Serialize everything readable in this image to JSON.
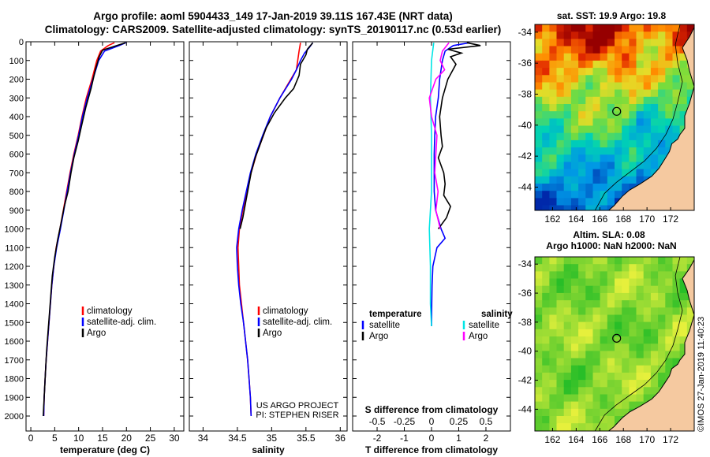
{
  "header": {
    "line1": "Argo profile: aoml 5904433_149 17-Jan-2019 39.11S 167.43E (NRT data)",
    "line2": "Climatology: CARS2009. Satellite-adjusted climatology: synTS_20190117.nc (0.53d earlier)"
  },
  "colors": {
    "climatology": "#ff0000",
    "satellite": "#0000ff",
    "argo": "#000000",
    "sat_salinity": "#00e5e5",
    "argo_salinity": "#ff00ff"
  },
  "credits": {
    "line1": "US ARGO PROJECT",
    "line2": "PI: STEPHEN RISER"
  },
  "watermark": "©IMOS 27-Jan-2019 11:40:23",
  "chart_data": [
    {
      "id": "temperature",
      "type": "line",
      "xlabel": "temperature (deg C)",
      "ylabel": "",
      "xlim": [
        -1,
        32
      ],
      "ylim": [
        0,
        2080
      ],
      "xticks": [
        0,
        5,
        10,
        15,
        20,
        25,
        30
      ],
      "yticks": [
        0,
        100,
        200,
        300,
        400,
        500,
        600,
        700,
        800,
        900,
        1000,
        1100,
        1200,
        1300,
        1400,
        1500,
        1600,
        1700,
        1800,
        1900,
        2000
      ],
      "legend": [
        "climatology",
        "satellite-adj. clim.",
        "Argo"
      ],
      "series": [
        {
          "name": "climatology",
          "color": "#ff0000",
          "points": [
            [
              17.5,
              5
            ],
            [
              16.2,
              20
            ],
            [
              14.6,
              50
            ],
            [
              13.8,
              100
            ],
            [
              12.8,
              200
            ],
            [
              11.6,
              300
            ],
            [
              10.7,
              400
            ],
            [
              9.9,
              500
            ],
            [
              9.0,
              600
            ],
            [
              8.2,
              700
            ],
            [
              7.5,
              800
            ],
            [
              6.8,
              900
            ],
            [
              6.1,
              1000
            ],
            [
              5.3,
              1100
            ],
            [
              4.8,
              1200
            ],
            [
              4.4,
              1300
            ],
            [
              4.1,
              1400
            ],
            [
              3.8,
              1500
            ],
            [
              3.5,
              1600
            ],
            [
              3.2,
              1700
            ],
            [
              3.0,
              1800
            ],
            [
              2.8,
              1900
            ],
            [
              2.7,
              2000
            ]
          ]
        },
        {
          "name": "satellite-adj. clim.",
          "color": "#0000ff",
          "points": [
            [
              19.9,
              5
            ],
            [
              18.5,
              20
            ],
            [
              15.4,
              50
            ],
            [
              14.2,
              100
            ],
            [
              13.0,
              200
            ],
            [
              11.8,
              300
            ],
            [
              10.8,
              400
            ],
            [
              10.0,
              500
            ],
            [
              9.1,
              600
            ],
            [
              8.3,
              700
            ],
            [
              7.6,
              800
            ],
            [
              6.9,
              900
            ],
            [
              6.2,
              1000
            ],
            [
              5.4,
              1100
            ],
            [
              4.8,
              1200
            ],
            [
              4.4,
              1300
            ],
            [
              4.1,
              1400
            ],
            [
              3.8,
              1500
            ],
            [
              3.5,
              1600
            ],
            [
              3.2,
              1700
            ],
            [
              3.0,
              1800
            ],
            [
              2.8,
              1900
            ],
            [
              2.7,
              2000
            ]
          ]
        },
        {
          "name": "Argo",
          "color": "#000000",
          "points": [
            [
              19.8,
              5
            ],
            [
              18.0,
              20
            ],
            [
              15.0,
              45
            ],
            [
              14.3,
              80
            ],
            [
              13.5,
              150
            ],
            [
              12.6,
              250
            ],
            [
              11.5,
              350
            ],
            [
              10.6,
              450
            ],
            [
              9.9,
              530
            ],
            [
              9.0,
              620
            ],
            [
              8.4,
              700
            ],
            [
              7.8,
              800
            ],
            [
              7.0,
              880
            ],
            [
              6.4,
              960
            ],
            [
              5.6,
              1060
            ],
            [
              5.0,
              1150
            ],
            [
              4.5,
              1250
            ],
            [
              4.2,
              1350
            ],
            [
              3.9,
              1450
            ],
            [
              3.6,
              1550
            ],
            [
              3.3,
              1650
            ],
            [
              3.1,
              1750
            ],
            [
              2.9,
              1850
            ],
            [
              2.7,
              1950
            ],
            [
              2.6,
              2000
            ]
          ]
        }
      ]
    },
    {
      "id": "salinity",
      "type": "line",
      "xlabel": "salinity",
      "ylabel": "",
      "xlim": [
        33.8,
        36.1
      ],
      "ylim": [
        0,
        2080
      ],
      "xticks": [
        34,
        34.5,
        35,
        35.5,
        36
      ],
      "legend": [
        "climatology",
        "satellite-adj. clim.",
        "Argo"
      ],
      "series": [
        {
          "name": "climatology",
          "color": "#ff0000",
          "points": [
            [
              35.42,
              5
            ],
            [
              35.4,
              50
            ],
            [
              35.38,
              100
            ],
            [
              35.36,
              150
            ],
            [
              35.28,
              200
            ],
            [
              35.12,
              300
            ],
            [
              34.98,
              400
            ],
            [
              34.88,
              500
            ],
            [
              34.78,
              600
            ],
            [
              34.7,
              700
            ],
            [
              34.64,
              800
            ],
            [
              34.58,
              900
            ],
            [
              34.53,
              1000
            ],
            [
              34.51,
              1100
            ],
            [
              34.52,
              1200
            ],
            [
              34.53,
              1300
            ],
            [
              34.56,
              1400
            ],
            [
              34.59,
              1500
            ],
            [
              34.62,
              1600
            ],
            [
              34.65,
              1700
            ],
            [
              34.67,
              1800
            ],
            [
              34.69,
              1900
            ],
            [
              34.7,
              2000
            ]
          ]
        },
        {
          "name": "satellite-adj. clim.",
          "color": "#0000ff",
          "points": [
            [
              35.6,
              5
            ],
            [
              35.55,
              30
            ],
            [
              35.48,
              60
            ],
            [
              35.42,
              100
            ],
            [
              35.36,
              150
            ],
            [
              35.29,
              200
            ],
            [
              35.12,
              300
            ],
            [
              34.98,
              400
            ],
            [
              34.87,
              500
            ],
            [
              34.77,
              600
            ],
            [
              34.69,
              700
            ],
            [
              34.63,
              800
            ],
            [
              34.57,
              900
            ],
            [
              34.52,
              1000
            ],
            [
              34.49,
              1100
            ],
            [
              34.5,
              1200
            ],
            [
              34.52,
              1300
            ],
            [
              34.55,
              1400
            ],
            [
              34.59,
              1500
            ],
            [
              34.62,
              1600
            ],
            [
              34.65,
              1700
            ],
            [
              34.67,
              1800
            ],
            [
              34.69,
              1900
            ],
            [
              34.7,
              2000
            ]
          ]
        },
        {
          "name": "Argo",
          "color": "#000000",
          "points": [
            [
              35.6,
              5
            ],
            [
              35.52,
              40
            ],
            [
              35.5,
              70
            ],
            [
              35.42,
              120
            ],
            [
              35.4,
              180
            ],
            [
              35.32,
              250
            ],
            [
              35.2,
              300
            ],
            [
              35.04,
              380
            ],
            [
              34.92,
              460
            ],
            [
              34.84,
              540
            ],
            [
              34.76,
              620
            ],
            [
              34.7,
              700
            ],
            [
              34.66,
              780
            ],
            [
              34.62,
              860
            ],
            [
              34.58,
              940
            ],
            [
              34.54,
              1000
            ]
          ]
        }
      ]
    },
    {
      "id": "difference",
      "type": "line",
      "xlabel": "T difference from climatology",
      "title_top": "S difference from climatology",
      "xlim": [
        -2.9,
        2.9
      ],
      "ylim": [
        0,
        2080
      ],
      "xticks": [
        -2,
        -1,
        0,
        1,
        2
      ],
      "xtick_labels": [
        "-2",
        "-1",
        "0",
        "1",
        "2"
      ],
      "sticks": [
        -0.5,
        -0.25,
        0,
        0.25,
        0.5
      ],
      "stick_labels": [
        "-0.5",
        "-0.25",
        "0",
        "0.25",
        "0.5"
      ],
      "legend_left_title": "temperature",
      "legend_right_title": "salinity",
      "legend_left": [
        "satellite",
        "Argo"
      ],
      "legend_right": [
        "satellite",
        "Argo"
      ],
      "series": [
        {
          "name": "T satellite",
          "color": "#0000ff",
          "axis": "T",
          "points": [
            [
              1.4,
              5
            ],
            [
              0.8,
              20
            ],
            [
              0.5,
              50
            ],
            [
              0.4,
              100
            ],
            [
              0.3,
              200
            ],
            [
              0.25,
              300
            ],
            [
              0.15,
              400
            ],
            [
              0.12,
              500
            ],
            [
              0.1,
              600
            ],
            [
              0.1,
              700
            ],
            [
              0.1,
              800
            ],
            [
              0.15,
              900
            ],
            [
              0.35,
              1000
            ],
            [
              0.5,
              1050
            ],
            [
              0.2,
              1100
            ],
            [
              0.05,
              1200
            ],
            [
              0.02,
              1300
            ],
            [
              0.01,
              1400
            ],
            [
              0.0,
              1520
            ]
          ]
        },
        {
          "name": "T Argo",
          "color": "#000000",
          "axis": "T",
          "points": [
            [
              1.3,
              5
            ],
            [
              1.8,
              20
            ],
            [
              0.6,
              40
            ],
            [
              1.1,
              60
            ],
            [
              0.7,
              80
            ],
            [
              0.9,
              120
            ],
            [
              0.6,
              200
            ],
            [
              0.4,
              300
            ],
            [
              0.3,
              400
            ],
            [
              0.35,
              500
            ],
            [
              0.4,
              560
            ],
            [
              0.25,
              620
            ],
            [
              0.45,
              700
            ],
            [
              0.5,
              760
            ],
            [
              0.45,
              820
            ],
            [
              0.7,
              880
            ],
            [
              0.55,
              940
            ],
            [
              0.25,
              1000
            ]
          ]
        },
        {
          "name": "S satellite",
          "color": "#00e5e5",
          "axis": "S",
          "points": [
            [
              0.02,
              5
            ],
            [
              0.0,
              100
            ],
            [
              -0.01,
              300
            ],
            [
              0.0,
              500
            ],
            [
              0.0,
              800
            ],
            [
              -0.02,
              1000
            ],
            [
              -0.01,
              1200
            ],
            [
              -0.01,
              1400
            ],
            [
              0.0,
              1520
            ]
          ]
        },
        {
          "name": "S Argo",
          "color": "#ff00ff",
          "axis": "S",
          "points": [
            [
              0.16,
              5
            ],
            [
              0.1,
              50
            ],
            [
              0.08,
              100
            ],
            [
              0.12,
              150
            ],
            [
              0.04,
              200
            ],
            [
              -0.02,
              300
            ],
            [
              0.0,
              400
            ],
            [
              0.05,
              500
            ],
            [
              0.04,
              600
            ],
            [
              0.03,
              700
            ],
            [
              0.06,
              800
            ],
            [
              0.04,
              900
            ],
            [
              0.08,
              1000
            ]
          ]
        }
      ]
    },
    {
      "id": "sst_map",
      "type": "heatmap",
      "title": "sat. SST: 19.9 Argo: 19.8",
      "xlim": [
        160.5,
        174
      ],
      "ylim": [
        -45.5,
        -33.5
      ],
      "xticks": [
        162,
        164,
        166,
        168,
        170,
        172
      ],
      "yticks": [
        -34,
        -36,
        -38,
        -40,
        -42,
        -44
      ],
      "marker": [
        167.43,
        -39.11
      ]
    },
    {
      "id": "sla_map",
      "type": "heatmap",
      "title": "Altim. SLA: 0.08",
      "subtitle": "Argo h1000: NaN h2000: NaN",
      "xlim": [
        160.5,
        174
      ],
      "ylim": [
        -45.5,
        -33.5
      ],
      "xticks": [
        162,
        164,
        166,
        168,
        170,
        172
      ],
      "yticks": [
        -34,
        -36,
        -38,
        -40,
        -42,
        -44
      ],
      "marker": [
        167.43,
        -39.11
      ]
    }
  ]
}
